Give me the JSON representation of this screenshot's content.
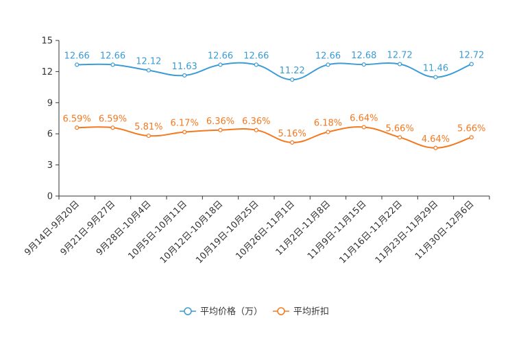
{
  "chart_data": {
    "type": "line",
    "title": "",
    "xlabel": "",
    "ylabel": "",
    "ylim": [
      0,
      15
    ],
    "yticks": [
      0,
      3,
      6,
      9,
      12,
      15
    ],
    "grid": false,
    "legend_position": "bottom-center",
    "categories": [
      "9月14日-9月20日",
      "9月21日-9月27日",
      "9月28日-10月4日",
      "10月5日-10月11日",
      "10月12日-10月18日",
      "10月19日-10月25日",
      "10月26日-11月1日",
      "11月2日-11月8日",
      "11月9日-11月15日",
      "11月16日-11月22日",
      "11月23日-11月29日",
      "11月30日-12月6日"
    ],
    "series": [
      {
        "name": "平均价格（万）",
        "color": "#3a9bd5",
        "values": [
          12.66,
          12.66,
          12.12,
          11.63,
          12.66,
          12.66,
          11.22,
          12.66,
          12.68,
          12.72,
          11.46,
          12.72
        ],
        "labels": [
          "12.66",
          "12.66",
          "12.12",
          "11.63",
          "12.66",
          "12.66",
          "11.22",
          "12.66",
          "12.68",
          "12.72",
          "11.46",
          "12.72"
        ]
      },
      {
        "name": "平均折扣",
        "color": "#f5781e",
        "values": [
          6.59,
          6.59,
          5.81,
          6.17,
          6.36,
          6.36,
          5.16,
          6.18,
          6.64,
          5.66,
          4.64,
          5.66
        ],
        "labels": [
          "6.59%",
          "6.59%",
          "5.81%",
          "6.17%",
          "6.36%",
          "6.36%",
          "5.16%",
          "6.18%",
          "6.64%",
          "5.66%",
          "4.64%",
          "5.66%"
        ]
      }
    ]
  }
}
